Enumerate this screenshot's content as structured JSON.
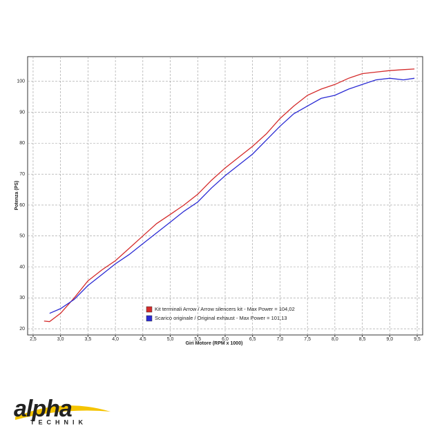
{
  "chart_data": {
    "type": "line",
    "xlabel": "Giri Motore (RPM x 1000)",
    "ylabel": "Potenza (PS)",
    "xlim": [
      2.4,
      9.6
    ],
    "ylim": [
      18,
      108
    ],
    "xticks": [
      {
        "value": 2.5,
        "label": "2,5"
      },
      {
        "value": 3.0,
        "label": "3,0"
      },
      {
        "value": 3.5,
        "label": "3,5"
      },
      {
        "value": 4.0,
        "label": "4,0"
      },
      {
        "value": 4.5,
        "label": "4,5"
      },
      {
        "value": 5.0,
        "label": "5,0"
      },
      {
        "value": 5.5,
        "label": "5,5"
      },
      {
        "value": 6.0,
        "label": "6,0"
      },
      {
        "value": 6.5,
        "label": "6,5"
      },
      {
        "value": 7.0,
        "label": "7,0"
      },
      {
        "value": 7.5,
        "label": "7,5"
      },
      {
        "value": 8.0,
        "label": "8,0"
      },
      {
        "value": 8.5,
        "label": "8,5"
      },
      {
        "value": 9.0,
        "label": "9,0"
      },
      {
        "value": 9.5,
        "label": "9,5"
      }
    ],
    "yticks": [
      20,
      30,
      40,
      50,
      60,
      70,
      80,
      90,
      100
    ],
    "grid": true,
    "series": [
      {
        "name": "Kit terminali Arrow / Arrow silencers kit - Max Power = 104,02",
        "color": "#d42a2a",
        "x": [
          2.7,
          2.8,
          3.0,
          3.25,
          3.5,
          3.75,
          4.0,
          4.25,
          4.5,
          4.75,
          5.0,
          5.25,
          5.5,
          5.75,
          6.0,
          6.25,
          6.5,
          6.75,
          7.0,
          7.25,
          7.5,
          7.75,
          8.0,
          8.25,
          8.5,
          8.75,
          9.0,
          9.25,
          9.45
        ],
        "values": [
          22.5,
          22.3,
          25,
          30,
          35.5,
          39,
          42,
          46,
          50,
          54,
          57,
          60,
          63.5,
          68,
          72,
          75.5,
          79,
          83,
          88,
          92,
          95.5,
          97.5,
          99,
          101,
          102.5,
          103,
          103.5,
          103.8,
          104
        ]
      },
      {
        "name": "Scarico originale / Original exhaust - Max Power = 101,13",
        "color": "#2a2ad4",
        "x": [
          2.8,
          3.0,
          3.25,
          3.5,
          3.75,
          4.0,
          4.25,
          4.5,
          4.75,
          5.0,
          5.25,
          5.5,
          5.75,
          6.0,
          6.25,
          6.5,
          6.75,
          7.0,
          7.25,
          7.5,
          7.75,
          8.0,
          8.25,
          8.5,
          8.75,
          9.0,
          9.25,
          9.45
        ],
        "values": [
          25,
          26.5,
          29.5,
          34,
          37.5,
          41,
          44,
          47.5,
          51,
          54.5,
          58,
          61,
          65.5,
          69.5,
          73,
          76.5,
          81,
          85.5,
          89.5,
          92,
          94.5,
          95.5,
          97.5,
          99,
          100.5,
          101,
          100.5,
          101
        ]
      }
    ]
  },
  "logo": {
    "name": "alpha",
    "tagline": "TECHNIK"
  }
}
